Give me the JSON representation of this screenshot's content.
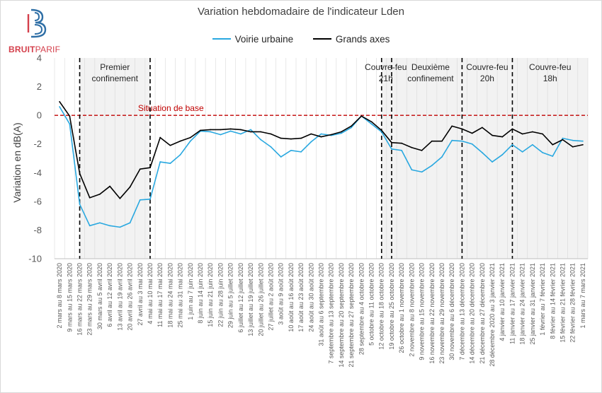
{
  "logo": {
    "part1": "BRUIT",
    "part2": "PARIF"
  },
  "colors": {
    "voirie": "#29a8e0",
    "grands_axes": "#000000",
    "baseline": "#c00000",
    "shade": "#f2f2f2",
    "grid": "#d9d9d9"
  },
  "chart_data": {
    "type": "line",
    "title": "Variation hebdomadaire de l'indicateur Lden",
    "ylabel": "Variation en dB(A)",
    "xlabel": "",
    "ylim": [
      -10,
      4
    ],
    "yticks": [
      4,
      2,
      0,
      -2,
      -4,
      -6,
      -8,
      -10
    ],
    "categories": [
      "2 mars au 8 mars 2020",
      "9 mars au 15 mars 2020",
      "16 mars au 22 mars 2020",
      "23 mars au 29 mars 2020",
      "30 mars au 5 avril 2020",
      "6 avril au 12 avril 2020",
      "13 avril au 19 avril 2020",
      "20 avril au 26 avril 2020",
      "27 avril au 3 mai 2020",
      "4 mai au 10 mai 2020",
      "11 mai au 17 mai 2020",
      "18 mai au 24 mai 2020",
      "25 mai au 31 mai 2020",
      "1 juin au 7 juin 2020",
      "8 juin au 14 juin 2020",
      "15 juin au 21 juin 2020",
      "22 juin au 28 juin 2020",
      "29 juin au 5 juillet 2020",
      "6 juillet au 12 juillet 2020",
      "13 juillet au 19 juillet 2020",
      "20 juillet au 26 juillet 2020",
      "27 juillet au 2 août 2020",
      "3 août au 9 août 2020",
      "10 août au 16 août 2020",
      "17 août au 23 août 2020",
      "24 août au 30 août 2020",
      "31 août au 6 septembre 2020",
      "7 septembre au 13 septembre 2020",
      "14 septembre au 20 septembre 2020",
      "21 septembre au 27 septembre 2020",
      "28 septembre au 4 octobre 2020",
      "5 octobre au 11 octobre 2020",
      "12 octobre au 18 octobre 2020",
      "19 octobre au 25 octobre 2020",
      "26 octobre au 1 novembre 2020",
      "2 novembre au 8 novembre 2020",
      "9 novembre au 15 novembre 2020",
      "16 novembre au 22 novembre 2020",
      "23 novembre au 29 novembre 2020",
      "30 novembre au 6 décembre 2020",
      "7 décembre au 13 décembre 2020",
      "14 décembre au 20 décembre 2020",
      "21 décembre au 27 décembre 2020",
      "28 décembre 2020 au 3 janvier 2021",
      "4 janvier au 10 janvier 2021",
      "11 janvier au 17 janvier 2021",
      "18 janvier au 24 janvier 2021",
      "25 janvier au 31 janvier 2021",
      "1 février au 7 février 2021",
      "8 février au 14 février 2021",
      "15 février au 21 février 2021",
      "22 février au 28 février 2021",
      "1 mars au 7 mars 2021"
    ],
    "series": [
      {
        "name": "Voirie urbaine",
        "color": "#29a8e0",
        "values": [
          0.6,
          -0.6,
          -6.2,
          -7.7,
          -7.5,
          -7.7,
          -7.8,
          -7.5,
          -5.9,
          -5.85,
          -3.25,
          -3.35,
          -2.75,
          -1.8,
          -1.1,
          -1.15,
          -1.35,
          -1.1,
          -1.3,
          -1.0,
          -1.7,
          -2.2,
          -2.9,
          -2.45,
          -2.55,
          -1.85,
          -1.3,
          -1.4,
          -1.25,
          -0.85,
          -0.05,
          -0.6,
          -1.15,
          -2.35,
          -2.45,
          -3.8,
          -3.95,
          -3.5,
          -2.9,
          -1.75,
          -1.8,
          -2.0,
          -2.6,
          -3.25,
          -2.75,
          -2.05,
          -2.55,
          -2.05,
          -2.6,
          -2.85,
          -1.6,
          -1.75,
          -1.8
        ]
      },
      {
        "name": "Grands axes",
        "color": "#000000",
        "values": [
          0.95,
          -0.05,
          -4.05,
          -5.75,
          -5.5,
          -4.95,
          -5.8,
          -5.0,
          -3.75,
          -3.65,
          -1.55,
          -2.1,
          -1.8,
          -1.55,
          -1.05,
          -1.0,
          -1.0,
          -0.95,
          -1.0,
          -1.15,
          -1.15,
          -1.3,
          -1.6,
          -1.65,
          -1.6,
          -1.3,
          -1.5,
          -1.35,
          -1.15,
          -0.75,
          -0.05,
          -0.45,
          -1.05,
          -1.9,
          -1.95,
          -2.25,
          -2.45,
          -1.8,
          -1.8,
          -0.75,
          -0.95,
          -1.25,
          -0.85,
          -1.4,
          -1.5,
          -0.95,
          -1.3,
          -1.15,
          -1.3,
          -2.05,
          -1.7,
          -2.2,
          -2.05
        ]
      }
    ],
    "baseline": {
      "value": 0,
      "label": "Situation de base"
    },
    "periods": [
      {
        "start": 2.5,
        "end": 9.5,
        "label_lines": [
          "Premier",
          "confinement"
        ]
      },
      {
        "start": 32.5,
        "end": 33.5,
        "label_lines": [
          "Couvre-feu",
          "21h"
        ]
      },
      {
        "start": 33.5,
        "end": 40.5,
        "label_lines": [
          "Deuxième",
          "confinement"
        ]
      },
      {
        "start": 40.5,
        "end": 45.5,
        "label_lines": [
          "Couvre-feu",
          "20h"
        ]
      },
      {
        "start": 45.5,
        "end": 53.0,
        "label_lines": [
          "Couvre-feu",
          "18h"
        ]
      }
    ],
    "dividers": [
      2.5,
      9.5,
      32.5,
      33.5,
      40.5,
      45.5
    ]
  }
}
